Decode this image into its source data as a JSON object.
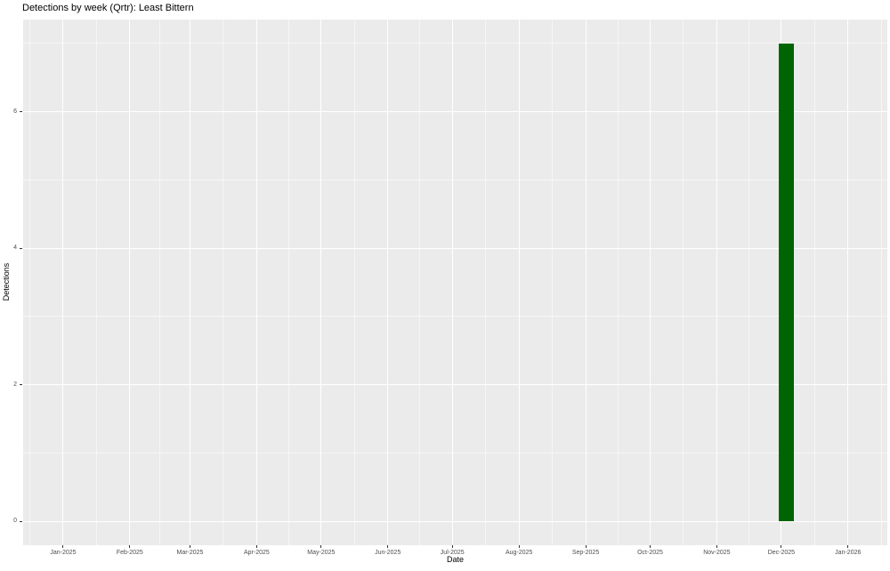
{
  "chart_data": {
    "type": "bar",
    "title": "Detections by week (Qrtr): Least Bittern",
    "xlabel": "Date",
    "ylabel": "Detections",
    "legend": "none",
    "grid": "on",
    "x_axis": {
      "unit": "days from 2025-01-01",
      "ticks": [
        {
          "day": 0,
          "label": "Jan-2025"
        },
        {
          "day": 31,
          "label": "Feb-2025"
        },
        {
          "day": 59,
          "label": "Mar-2025"
        },
        {
          "day": 90,
          "label": "Apr-2025"
        },
        {
          "day": 120,
          "label": "May-2025"
        },
        {
          "day": 151,
          "label": "Jun-2025"
        },
        {
          "day": 181,
          "label": "Jul-2025"
        },
        {
          "day": 212,
          "label": "Aug-2025"
        },
        {
          "day": 243,
          "label": "Sep-2025"
        },
        {
          "day": 273,
          "label": "Oct-2025"
        },
        {
          "day": 304,
          "label": "Nov-2025"
        },
        {
          "day": 334,
          "label": "Dec-2025"
        },
        {
          "day": 365,
          "label": "Jan-2026"
        }
      ],
      "minor_days": [
        -15.5,
        15.5,
        45,
        74.5,
        105,
        135.5,
        166,
        196.5,
        227.5,
        258,
        288.5,
        319,
        349.5,
        380.5
      ],
      "lim_days": [
        -18.6,
        383.3
      ]
    },
    "y_axis": {
      "ticks": [
        0,
        2,
        4,
        6
      ],
      "minor": [
        1,
        3,
        5,
        7
      ],
      "lim": [
        -0.35,
        7.35
      ]
    },
    "series": [
      {
        "name": "Least Bittern",
        "points": [
          {
            "week_label": "Dec-2025",
            "start_day": 333,
            "end_day": 340,
            "value": 7
          }
        ]
      }
    ],
    "colors": {
      "bar": "#006400",
      "panel_bg": "#EBEBEB",
      "grid": "#FFFFFF",
      "tick_mark": "#333333",
      "tick_label": "#4d4d4d",
      "text": "#000000"
    }
  }
}
